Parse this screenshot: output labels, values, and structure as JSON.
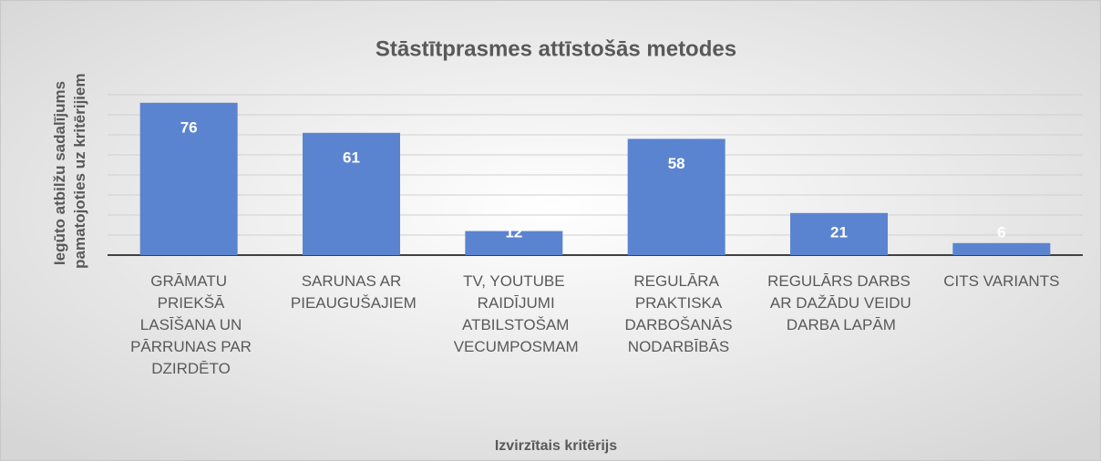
{
  "chart_data": {
    "type": "bar",
    "title": "Stāstītprasmes attīstošās metodes",
    "x_label": "Izvirzītais kritērijs",
    "y_label": "Iegūto atbilžu sadalījums pamatojoties uz kritērijiem",
    "categories": [
      "GRĀMATU PRIEKŠĀ LASĪŠANA UN PĀRRUNAS PAR DZIRDĒTO",
      "SARUNAS AR PIEAUGUŠAJIEM",
      "TV, YOUTUBE RAIDĪJUMI ATBILSTOŠAM VECUMPOSMAM",
      "REGULĀRA PRAKTISKA DARBOŠANĀS NODARBĪBĀS",
      "REGULĀRS DARBS AR DAŽĀDU VEIDU DARBA LAPĀM",
      "CITS VARIANTS"
    ],
    "values": [
      76,
      61,
      12,
      58,
      21,
      6
    ],
    "color": "#5b84d0",
    "ylim": [
      0,
      80
    ],
    "yticks": [
      0,
      10,
      20,
      30,
      40,
      50,
      60,
      70,
      80
    ],
    "grid": true,
    "tick_labels": false
  }
}
